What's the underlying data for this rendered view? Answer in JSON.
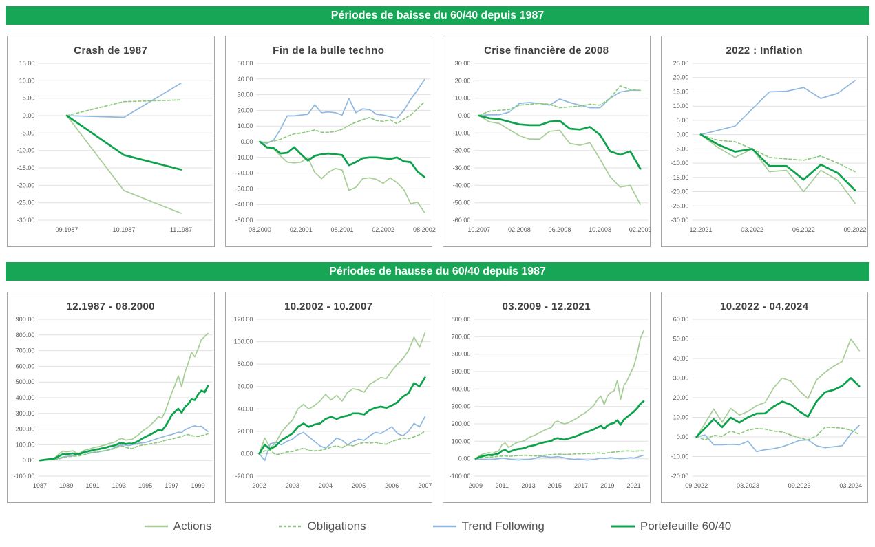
{
  "banners": [
    {
      "label": "Périodes de baisse du 60/40 depuis 1987"
    },
    {
      "label": "Périodes de hausse du 60/40 depuis 1987"
    }
  ],
  "colors": {
    "banner": "#17a556",
    "grid": "#e0e0e0",
    "axis_text": "#595959",
    "title_text": "#3f3f3f",
    "panel_border": "#a6a6a6",
    "actions": "#a6cd96",
    "obligations": "#8fc97f",
    "trend": "#8eb8e0",
    "portefeuille": "#0ca24c"
  },
  "series_meta": [
    {
      "key": "actions",
      "label": "Actions",
      "color": "#a6cd96",
      "dash": null,
      "width": 1.7
    },
    {
      "key": "trend",
      "label": "Trend Following",
      "color": "#8eb8e0",
      "dash": null,
      "width": 1.7
    },
    {
      "key": "obligations",
      "label": "Obligations",
      "color": "#8fc97f",
      "dash": "4 3",
      "width": 1.7
    },
    {
      "key": "portefeuille",
      "label": "Portefeuille 60/40",
      "color": "#0ca24c",
      "dash": null,
      "width": 2.7
    }
  ],
  "legend": {
    "items": [
      {
        "series": "actions",
        "label": "Actions"
      },
      {
        "series": "obligations",
        "label": "Obligations"
      },
      {
        "series": "trend",
        "label": "Trend Following"
      },
      {
        "series": "portefeuille",
        "label": "Portefeuille 60/40"
      }
    ]
  },
  "chart_data": [
    {
      "type": "line",
      "title": "Crash de 1987",
      "ylim": [
        -30,
        15
      ],
      "ystep": 5,
      "grid": true,
      "n": 3,
      "x_ticks": [
        {
          "label": "09.1987",
          "i": 0
        },
        {
          "label": "10.1987",
          "i": 1
        },
        {
          "label": "11.1987",
          "i": 2
        }
      ],
      "series": {
        "actions": [
          0,
          -21.5,
          -28
        ],
        "obligations": [
          0,
          4,
          4.5
        ],
        "trend": [
          0,
          -0.5,
          9.3
        ],
        "portefeuille": [
          0,
          -11.3,
          -15.5
        ]
      }
    },
    {
      "type": "line",
      "title": "Fin de la bulle techno",
      "ylim": [
        -50,
        50
      ],
      "ystep": 10,
      "grid": true,
      "n": 25,
      "x_ticks": [
        {
          "label": "08.2000",
          "i": 0
        },
        {
          "label": "02.2001",
          "i": 6
        },
        {
          "label": "08.2001",
          "i": 12
        },
        {
          "label": "02.2002",
          "i": 18
        },
        {
          "label": "08.2002",
          "i": 24
        }
      ],
      "series": {
        "actions": [
          0,
          -4,
          -4.5,
          -9,
          -13,
          -13.5,
          -13,
          -10,
          -19.5,
          -23.5,
          -19.5,
          -17,
          -18,
          -31,
          -29,
          -23.5,
          -23,
          -24,
          -26.5,
          -23,
          -26,
          -30.5,
          -39.5,
          -38.5,
          -45
        ],
        "obligations": [
          0,
          -0.5,
          0.5,
          1.5,
          3.5,
          5,
          5.5,
          6.5,
          7.5,
          6,
          6,
          6.5,
          8,
          10.5,
          12.5,
          14,
          15.5,
          13.5,
          13,
          14,
          11.5,
          14.5,
          17,
          21,
          25.5
        ],
        "trend": [
          0,
          -1,
          1,
          8,
          16.5,
          16.5,
          17,
          17.5,
          23.5,
          18.5,
          19,
          18.5,
          17,
          27.5,
          18.5,
          21,
          20.5,
          17.5,
          17,
          16,
          15,
          20,
          27,
          33,
          39.5
        ],
        "portefeuille": [
          0,
          -3.5,
          -4,
          -7.5,
          -7,
          -3.5,
          -8,
          -12,
          -9,
          -8,
          -7.5,
          -8,
          -8.5,
          -15,
          -13,
          -10.5,
          -10,
          -10,
          -10.5,
          -11,
          -10,
          -12.5,
          -13,
          -19,
          -22.5
        ]
      }
    },
    {
      "type": "line",
      "title": "Crise financière de 2008",
      "ylim": [
        -60,
        30
      ],
      "ystep": 10,
      "grid": true,
      "n": 17,
      "x_ticks": [
        {
          "label": "10.2007",
          "i": 0
        },
        {
          "label": "02.2008",
          "i": 4
        },
        {
          "label": "06.2008",
          "i": 8
        },
        {
          "label": "10.2008",
          "i": 12
        },
        {
          "label": "02.2009",
          "i": 16
        }
      ],
      "series": {
        "actions": [
          0,
          -3.5,
          -4.5,
          -8,
          -11.5,
          -13.5,
          -13.5,
          -9,
          -8.5,
          -16,
          -17,
          -15.5,
          -25,
          -35,
          -41,
          -40,
          -51
        ],
        "obligations": [
          0,
          2.5,
          3,
          3.5,
          6,
          6.5,
          7,
          6.5,
          4.5,
          5,
          5.5,
          6.5,
          6,
          10,
          17,
          15,
          14.5
        ],
        "trend": [
          0,
          0.5,
          0.5,
          2,
          7,
          7.5,
          7,
          6,
          9.5,
          7.5,
          6,
          4.5,
          4.5,
          10,
          13.5,
          14.5,
          14.5
        ],
        "portefeuille": [
          0,
          -1.5,
          -2,
          -3.5,
          -5,
          -5.5,
          -5.5,
          -3.5,
          -3,
          -7.5,
          -8,
          -6.5,
          -11,
          -20.5,
          -22.5,
          -20.5,
          -30.5
        ]
      }
    },
    {
      "type": "line",
      "title": "2022 : Inflation",
      "ylim": [
        -30,
        25
      ],
      "ystep": 5,
      "grid": true,
      "n": 10,
      "x_ticks": [
        {
          "label": "12.2021",
          "i": 0
        },
        {
          "label": "03.2022",
          "i": 3
        },
        {
          "label": "06.2022",
          "i": 6
        },
        {
          "label": "09.2022",
          "i": 9
        }
      ],
      "series": {
        "actions": [
          0,
          -4.5,
          -8,
          -5,
          -13,
          -12.5,
          -20,
          -12.5,
          -16,
          -24
        ],
        "obligations": [
          0,
          -2,
          -2.5,
          -5,
          -8,
          -8.5,
          -9,
          -7.5,
          -10,
          -13
        ],
        "trend": [
          0,
          1.5,
          3,
          9,
          15,
          15.2,
          16.5,
          12.7,
          14.5,
          19
        ],
        "portefeuille": [
          0,
          -3.5,
          -6,
          -5,
          -11,
          -11,
          -15.8,
          -10.5,
          -13.5,
          -19.5
        ]
      }
    },
    {
      "type": "line",
      "title": "12.1987 - 08.2000",
      "ylim": [
        -100,
        900
      ],
      "ystep": 100,
      "grid": true,
      "n": 52,
      "x_ticks": [
        {
          "label": "1987",
          "i": 0
        },
        {
          "label": "1989",
          "i": 8
        },
        {
          "label": "1991",
          "i": 16
        },
        {
          "label": "1993",
          "i": 24
        },
        {
          "label": "1995",
          "i": 32
        },
        {
          "label": "1997",
          "i": 40
        },
        {
          "label": "1999",
          "i": 48
        }
      ],
      "series": {
        "actions": [
          0,
          4,
          8,
          10,
          12,
          25,
          45,
          60,
          55,
          58,
          62,
          48,
          45,
          60,
          68,
          72,
          80,
          85,
          88,
          95,
          100,
          108,
          112,
          120,
          135,
          140,
          130,
          132,
          135,
          150,
          165,
          185,
          200,
          215,
          235,
          255,
          280,
          270,
          310,
          370,
          430,
          480,
          540,
          470,
          560,
          620,
          690,
          660,
          710,
          770,
          790,
          810
        ],
        "obligations": [
          0,
          2,
          3,
          5,
          6,
          8,
          12,
          18,
          22,
          25,
          26,
          28,
          30,
          35,
          40,
          45,
          50,
          55,
          58,
          60,
          62,
          68,
          72,
          80,
          88,
          92,
          85,
          78,
          75,
          85,
          92,
          98,
          100,
          105,
          108,
          112,
          115,
          120,
          128,
          132,
          135,
          142,
          148,
          152,
          160,
          165,
          158,
          155,
          152,
          158,
          162,
          170
        ],
        "trend": [
          0,
          2,
          4,
          5,
          6,
          10,
          15,
          22,
          26,
          28,
          30,
          34,
          38,
          45,
          50,
          48,
          52,
          50,
          55,
          60,
          63,
          70,
          75,
          85,
          95,
          100,
          98,
          95,
          100,
          105,
          110,
          112,
          115,
          120,
          128,
          135,
          142,
          148,
          155,
          160,
          165,
          172,
          180,
          178,
          195,
          205,
          215,
          220,
          215,
          218,
          200,
          185
        ],
        "portefeuille": [
          0,
          3,
          6,
          8,
          10,
          18,
          30,
          40,
          38,
          42,
          45,
          38,
          40,
          50,
          56,
          60,
          65,
          70,
          73,
          78,
          82,
          88,
          92,
          98,
          108,
          112,
          105,
          108,
          107,
          115,
          125,
          138,
          150,
          160,
          170,
          182,
          195,
          190,
          215,
          250,
          290,
          310,
          330,
          305,
          340,
          360,
          390,
          385,
          420,
          445,
          435,
          475
        ]
      }
    },
    {
      "type": "line",
      "title": "10.2002 - 10.2007",
      "ylim": [
        -20,
        120
      ],
      "ystep": 20,
      "grid": true,
      "n": 31,
      "x_ticks": [
        {
          "label": "2002",
          "i": 0
        },
        {
          "label": "2003",
          "i": 6
        },
        {
          "label": "2004",
          "i": 12
        },
        {
          "label": "2005",
          "i": 18
        },
        {
          "label": "2006",
          "i": 24
        },
        {
          "label": "2007",
          "i": 30
        }
      ],
      "series": {
        "actions": [
          0,
          14,
          5,
          10,
          19,
          25,
          30,
          40,
          44,
          40,
          43,
          47,
          53,
          48,
          52,
          47,
          55,
          58,
          57,
          55,
          62,
          65,
          68,
          67,
          74,
          80,
          85,
          92,
          104,
          95,
          108
        ],
        "obligations": [
          0,
          2.5,
          3,
          -1,
          0,
          1.5,
          2,
          3.5,
          5,
          3,
          2.5,
          3,
          4,
          6,
          7,
          5.5,
          8,
          7,
          9,
          10,
          9.5,
          10,
          9,
          8.5,
          11,
          12.5,
          14,
          13.5,
          15,
          17,
          20
        ],
        "trend": [
          0,
          -6,
          9,
          10,
          8,
          11,
          13,
          17,
          19,
          15,
          11,
          7,
          5,
          9,
          14,
          12,
          8,
          11,
          13,
          12,
          16,
          19,
          18,
          21,
          24,
          18,
          16,
          20,
          27,
          24,
          33
        ],
        "portefeuille": [
          0,
          8,
          4,
          7,
          12,
          15,
          18,
          24,
          27,
          24,
          26,
          27,
          31,
          33,
          31,
          33,
          34,
          36,
          36,
          35,
          39,
          41,
          42,
          41,
          43,
          46,
          51,
          54,
          63,
          60,
          68
        ]
      }
    },
    {
      "type": "line",
      "title": "03.2009 - 12.2021",
      "ylim": [
        -100,
        800
      ],
      "ystep": 100,
      "grid": true,
      "n": 52,
      "x_ticks": [
        {
          "label": "2009",
          "i": 0
        },
        {
          "label": "2011",
          "i": 8
        },
        {
          "label": "2013",
          "i": 16
        },
        {
          "label": "2015",
          "i": 24
        },
        {
          "label": "2017",
          "i": 32
        },
        {
          "label": "2019",
          "i": 40
        },
        {
          "label": "2021",
          "i": 48
        }
      ],
      "series": {
        "actions": [
          0,
          15,
          25,
          30,
          35,
          30,
          38,
          45,
          80,
          90,
          65,
          75,
          88,
          95,
          98,
          105,
          120,
          128,
          135,
          145,
          155,
          165,
          172,
          180,
          210,
          215,
          205,
          200,
          205,
          215,
          225,
          235,
          250,
          260,
          275,
          290,
          310,
          340,
          360,
          310,
          360,
          380,
          390,
          450,
          340,
          420,
          450,
          490,
          530,
          600,
          690,
          735
        ],
        "obligations": [
          0,
          3,
          5,
          7,
          9,
          10,
          12,
          14,
          15,
          16,
          14,
          15,
          17,
          18,
          19,
          20,
          18,
          17,
          16,
          17,
          18,
          20,
          22,
          24,
          25,
          26,
          25,
          24,
          25,
          26,
          27,
          28,
          28,
          29,
          30,
          31,
          32,
          33,
          32,
          30,
          33,
          36,
          38,
          40,
          42,
          44,
          45,
          44,
          43,
          44,
          45,
          45
        ],
        "trend": [
          0,
          -3,
          -5,
          -4,
          -6,
          -4,
          -2,
          0,
          4,
          2,
          -2,
          -4,
          -6,
          -8,
          -6,
          -5,
          -4,
          -2,
          2,
          8,
          14,
          12,
          10,
          8,
          10,
          12,
          8,
          5,
          0,
          -3,
          -5,
          -2,
          -4,
          -6,
          -8,
          -6,
          -4,
          0,
          4,
          2,
          4,
          6,
          4,
          2,
          0,
          2,
          4,
          6,
          4,
          8,
          14,
          20
        ],
        "portefeuille": [
          0,
          8,
          14,
          18,
          22,
          20,
          25,
          30,
          45,
          50,
          38,
          45,
          52,
          56,
          58,
          62,
          70,
          74,
          78,
          85,
          90,
          95,
          98,
          102,
          115,
          118,
          112,
          110,
          115,
          120,
          126,
          132,
          142,
          148,
          155,
          162,
          170,
          180,
          188,
          172,
          190,
          200,
          205,
          220,
          195,
          225,
          240,
          255,
          270,
          290,
          315,
          330
        ]
      }
    },
    {
      "type": "line",
      "title": "10.2022 - 04.2024",
      "ylim": [
        -20,
        60
      ],
      "ystep": 10,
      "grid": true,
      "n": 20,
      "x_ticks": [
        {
          "label": "09.2022",
          "i": 0
        },
        {
          "label": "03.2023",
          "i": 6
        },
        {
          "label": "09.2023",
          "i": 12
        },
        {
          "label": "03.2024",
          "i": 18
        }
      ],
      "series": {
        "actions": [
          0,
          7,
          14.2,
          7.5,
          14.5,
          11.2,
          13,
          16,
          17.5,
          25,
          30,
          28.5,
          23.5,
          19.5,
          29,
          33,
          36,
          38.5,
          50,
          44
        ],
        "obligations": [
          0,
          -1.5,
          0.8,
          0.3,
          3,
          1.5,
          3.5,
          4.3,
          4,
          3,
          2.5,
          1,
          -0.5,
          -1.5,
          0.5,
          5,
          4.8,
          4.5,
          3.5,
          1.2
        ],
        "trend": [
          0,
          1,
          -4,
          -4,
          -3.8,
          -4,
          -2.2,
          -7.5,
          -6.5,
          -6,
          -5,
          -3.5,
          -1.8,
          -1.5,
          -4.5,
          -5.5,
          -5,
          -4.5,
          1.5,
          6
        ],
        "portefeuille": [
          0,
          4.5,
          9,
          5,
          9.8,
          7.3,
          10,
          11.9,
          12,
          15.5,
          18,
          16.5,
          13,
          10.3,
          18,
          22.8,
          24,
          26,
          30,
          25.8
        ]
      }
    }
  ]
}
